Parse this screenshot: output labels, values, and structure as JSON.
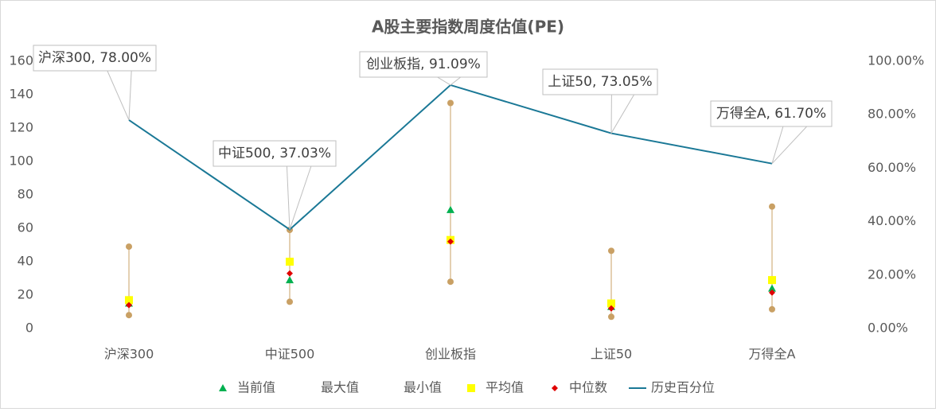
{
  "chart_data": {
    "type": "scatter-line",
    "title": "A股主要指数周度估值(PE)",
    "categories": [
      "沪深300",
      "中证500",
      "创业板指",
      "上证50",
      "万得全A"
    ],
    "ylim": [
      0,
      160
    ],
    "yticks": [
      0,
      20,
      40,
      60,
      80,
      100,
      120,
      140,
      160
    ],
    "y2lim": [
      0,
      100
    ],
    "y2ticks": [
      {
        "value": 0,
        "label": "0.00%"
      },
      {
        "value": 20,
        "label": "20.00%"
      },
      {
        "value": 40,
        "label": "40.00%"
      },
      {
        "value": 60,
        "label": "60.00%"
      },
      {
        "value": 80,
        "label": "80.00%"
      },
      {
        "value": 100,
        "label": "100.00%"
      }
    ],
    "series": [
      {
        "name": "当前值",
        "color": "#00b050",
        "marker": "triangle",
        "values": [
          15,
          29,
          71,
          13,
          24
        ]
      },
      {
        "name": "最大值",
        "color": "#c9a064",
        "marker": "circle",
        "values": [
          49,
          59,
          135,
          46.5,
          73
        ]
      },
      {
        "name": "最小值",
        "color": "#c9a064",
        "marker": "circle",
        "values": [
          8,
          16,
          28,
          7,
          11.5
        ]
      },
      {
        "name": "平均值",
        "color": "#ffff00",
        "marker": "square",
        "values": [
          17,
          40,
          53,
          15,
          29
        ]
      },
      {
        "name": "中位数",
        "color": "#e00000",
        "marker": "diamond",
        "values": [
          14,
          33,
          52,
          12,
          21.5
        ]
      },
      {
        "name": "历史百分位",
        "color": "#1a7896",
        "marker": "line",
        "axis": "y2",
        "values": [
          78.0,
          37.03,
          91.09,
          73.05,
          61.7
        ],
        "value_labels": [
          "沪深300, 78.00%",
          "中证500, 37.03%",
          "创业板指, 91.09%",
          "上证50, 73.05%",
          "万得全A, 61.70%"
        ]
      }
    ]
  }
}
